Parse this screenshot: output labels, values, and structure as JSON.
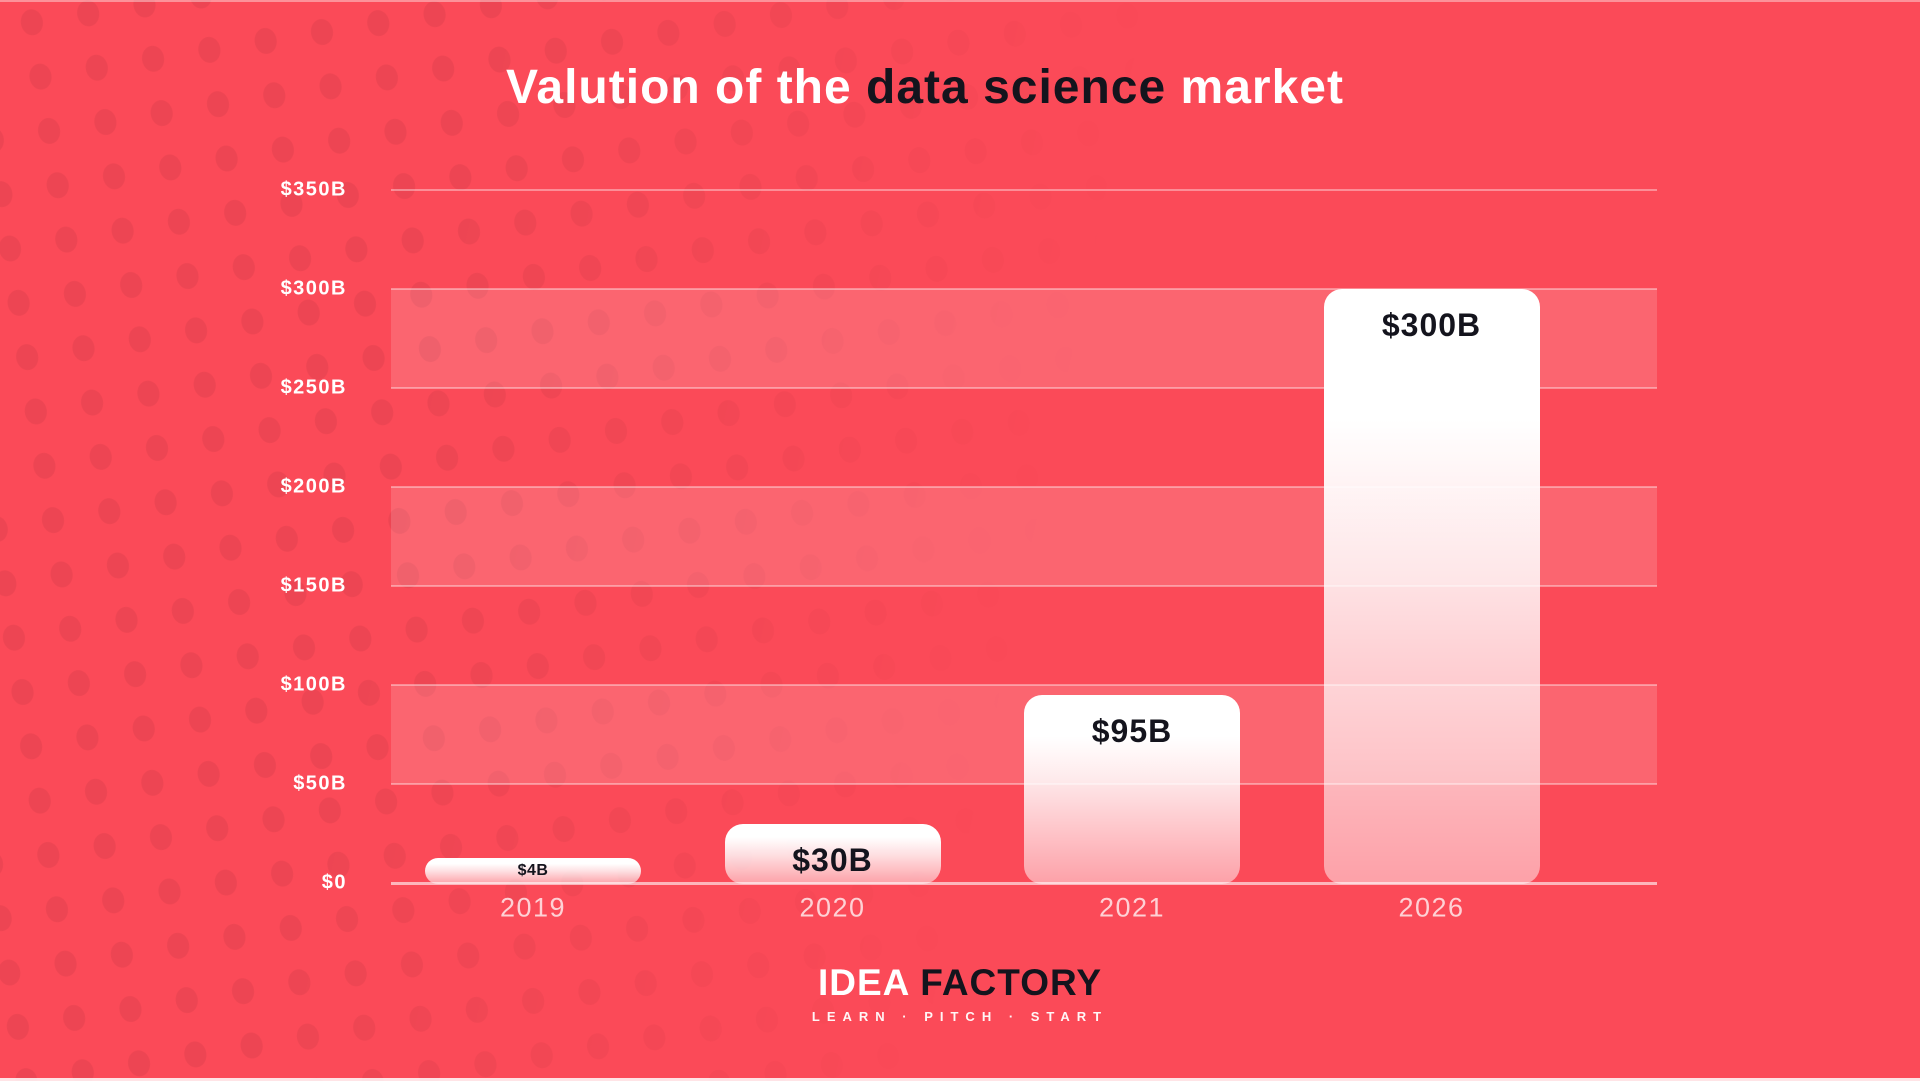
{
  "page": {
    "background_color": "#fb4a58",
    "title": {
      "prefix": "Valution of the ",
      "highlight": "data science",
      "suffix": " market"
    },
    "footer_logo": {
      "brand_left": "IDEA",
      "brand_right": "FACTORY",
      "tagline": "LEARN · PITCH · START"
    }
  },
  "chart_data": {
    "type": "bar",
    "title": "Valution of the data science market",
    "categories": [
      "2019",
      "2020",
      "2021",
      "2026"
    ],
    "values": [
      4,
      30,
      95,
      300
    ],
    "bar_labels": [
      "$4B",
      "$30B",
      "$95B",
      "$300B"
    ],
    "unit": "$B",
    "y_ticks": [
      "$0",
      "$50B",
      "$100B",
      "$150B",
      "$200B",
      "$250B",
      "$300B",
      "$350B"
    ],
    "y_tick_values": [
      0,
      50,
      100,
      150,
      200,
      250,
      300,
      350
    ],
    "ylim": [
      0,
      350
    ],
    "xlabel": "",
    "ylabel": "",
    "grid": true,
    "legend": false,
    "band_rows": [
      [
        250,
        300
      ],
      [
        150,
        200
      ],
      [
        50,
        100
      ]
    ],
    "colors": {
      "background": "#fb4a58",
      "bar_fill_top": "#ffffff",
      "bar_label": "#14141d",
      "gridline": "rgba(255,255,255,0.38)",
      "band": "rgba(255,255,255,0.15)",
      "axis_text": "#ffffff"
    }
  }
}
